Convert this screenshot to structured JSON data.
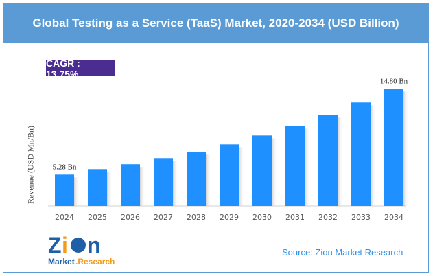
{
  "chart_data": {
    "type": "bar",
    "title": "Global Testing as a Service (TaaS) Market, 2020-2034 (USD Billion)",
    "ylabel": "Revenue (USD Mn/Bn)",
    "xlabel": "",
    "categories": [
      "2024",
      "2025",
      "2026",
      "2027",
      "2028",
      "2029",
      "2030",
      "2031",
      "2032",
      "2033",
      "2034"
    ],
    "values": [
      5.28,
      5.89,
      6.43,
      7.11,
      7.8,
      8.63,
      9.62,
      10.69,
      11.91,
      13.28,
      14.8
    ],
    "data_labels": {
      "0": "5.28 Bn",
      "10": "14.80 Bn"
    },
    "ylim": [
      1.8,
      16
    ],
    "grid": false,
    "bar_color": "#1e90ff"
  },
  "cagr": "CAGR : 13.75%",
  "source": "Source: Zion Market Research",
  "logo": {
    "word": "Zion",
    "sub1": "Market",
    "sub2": "Research"
  }
}
